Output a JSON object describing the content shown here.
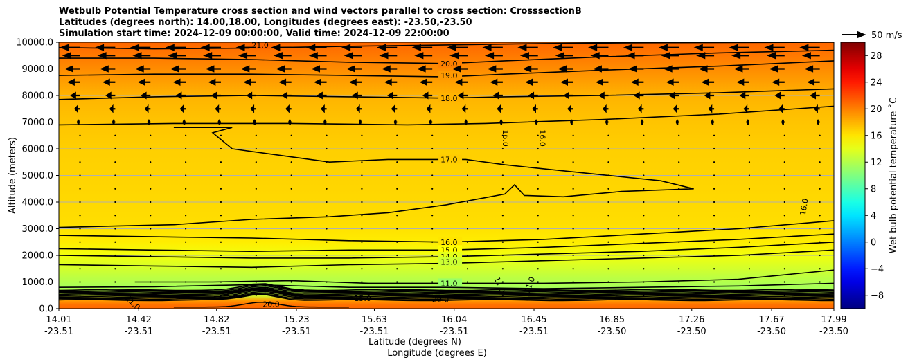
{
  "title_lines": [
    "Wetbulb Potential Temperature cross section and wind vectors parallel to cross section: CrosssectionB",
    "Latitudes (degrees north): 14.00,18.00, Longitudes (degrees east): -23.50,-23.50",
    "Simulation start time: 2024-12-09 00:00:00, Valid time: 2024-12-09 22:00:00"
  ],
  "chart_data": {
    "type": "heatmap",
    "ylabel": "Altitude (meters)",
    "xlabel_lines": [
      "Latitude (degrees N)",
      "Longitude (degrees E)"
    ],
    "ylim": [
      0,
      10000
    ],
    "xlim": [
      14.01,
      17.99
    ],
    "y_ticks": [
      "0.0",
      "1000.0",
      "2000.0",
      "3000.0",
      "4000.0",
      "5000.0",
      "6000.0",
      "7000.0",
      "8000.0",
      "9000.0",
      "10000.0"
    ],
    "y_tick_values": [
      0,
      1000,
      2000,
      3000,
      4000,
      5000,
      6000,
      7000,
      8000,
      9000,
      10000
    ],
    "x_ticks": [
      {
        "lat": 14.01,
        "lat_label": "14.01",
        "lon_label": "-23.51"
      },
      {
        "lat": 14.42,
        "lat_label": "14.42",
        "lon_label": "-23.51"
      },
      {
        "lat": 14.82,
        "lat_label": "14.82",
        "lon_label": "-23.51"
      },
      {
        "lat": 15.23,
        "lat_label": "15.23",
        "lon_label": "-23.51"
      },
      {
        "lat": 15.63,
        "lat_label": "15.63",
        "lon_label": "-23.51"
      },
      {
        "lat": 16.04,
        "lat_label": "16.04",
        "lon_label": "-23.51"
      },
      {
        "lat": 16.45,
        "lat_label": "16.45",
        "lon_label": "-23.51"
      },
      {
        "lat": 16.85,
        "lat_label": "16.85",
        "lon_label": "-23.50"
      },
      {
        "lat": 17.26,
        "lat_label": "17.26",
        "lon_label": "-23.50"
      },
      {
        "lat": 17.67,
        "lat_label": "17.67",
        "lon_label": "-23.50"
      },
      {
        "lat": 17.99,
        "lat_label": "17.99",
        "lon_label": "-23.50"
      }
    ],
    "grid": "horizontal",
    "colorbar": {
      "label": "Wet bulb potential temperature $^\\circ$C",
      "label_display": "Wet bulb potential temperature ˚C",
      "range": [
        -10,
        30
      ],
      "ticks": [
        "−8",
        "−4",
        "0",
        "4",
        "8",
        "12",
        "16",
        "20",
        "24",
        "28"
      ],
      "tick_values": [
        -8,
        -4,
        0,
        4,
        8,
        12,
        16,
        20,
        24,
        28
      ],
      "colormap": "jet"
    },
    "wind_key": {
      "label": "50 m/s",
      "speed": 50
    },
    "field_profile": [
      {
        "alt": 0,
        "value": 21
      },
      {
        "alt": 150,
        "value": 20.5
      },
      {
        "alt": 300,
        "value": 19
      },
      {
        "alt": 500,
        "value": 13
      },
      {
        "alt": 800,
        "value": 11.5
      },
      {
        "alt": 1200,
        "value": 12.5
      },
      {
        "alt": 1600,
        "value": 13.5
      },
      {
        "alt": 2000,
        "value": 14.5
      },
      {
        "alt": 2500,
        "value": 15.7
      },
      {
        "alt": 3200,
        "value": 16.3
      },
      {
        "alt": 4500,
        "value": 16.6
      },
      {
        "alt": 6000,
        "value": 16.9
      },
      {
        "alt": 7000,
        "value": 17.3
      },
      {
        "alt": 8000,
        "value": 18
      },
      {
        "alt": 9000,
        "value": 19.5
      },
      {
        "alt": 10000,
        "value": 21
      }
    ],
    "contours": [
      {
        "label": "21.0",
        "label_lat": 15.0,
        "label_alt": 9900,
        "points": [
          [
            14.01,
            9800
          ],
          [
            14.5,
            9750
          ],
          [
            15.0,
            9780
          ],
          [
            15.5,
            9850
          ],
          [
            16.0,
            9900
          ],
          [
            16.5,
            9950
          ],
          [
            17.0,
            9980
          ],
          [
            17.99,
            10000
          ]
        ]
      },
      {
        "label": "20.0",
        "label_lat": 15.97,
        "label_alt": 9200,
        "points": [
          [
            14.01,
            9400
          ],
          [
            14.5,
            9400
          ],
          [
            15.0,
            9350
          ],
          [
            15.5,
            9250
          ],
          [
            16.0,
            9200
          ],
          [
            16.3,
            9300
          ],
          [
            16.8,
            9450
          ],
          [
            17.4,
            9600
          ],
          [
            17.99,
            9700
          ]
        ]
      },
      {
        "label": "19.0",
        "label_lat": 15.97,
        "label_alt": 8750,
        "points": [
          [
            14.01,
            8750
          ],
          [
            14.5,
            8800
          ],
          [
            15.0,
            8800
          ],
          [
            15.5,
            8750
          ],
          [
            16.0,
            8700
          ],
          [
            16.3,
            8800
          ],
          [
            16.8,
            8950
          ],
          [
            17.4,
            9100
          ],
          [
            17.99,
            9300
          ]
        ]
      },
      {
        "label": "18.0",
        "label_lat": 15.97,
        "label_alt": 7900,
        "points": [
          [
            14.01,
            7850
          ],
          [
            14.5,
            7950
          ],
          [
            15.0,
            8000
          ],
          [
            15.5,
            7950
          ],
          [
            16.0,
            7900
          ],
          [
            16.3,
            7950
          ],
          [
            16.8,
            8000
          ],
          [
            17.4,
            8100
          ],
          [
            17.99,
            8250
          ]
        ]
      },
      {
        "label": "",
        "label_lat": 0,
        "label_alt": 0,
        "points": [
          [
            14.01,
            6900
          ],
          [
            14.6,
            6950
          ],
          [
            15.2,
            6950
          ],
          [
            15.8,
            6900
          ],
          [
            16.2,
            6950
          ],
          [
            16.8,
            7100
          ],
          [
            17.4,
            7300
          ],
          [
            17.99,
            7600
          ]
        ]
      },
      {
        "label": "17.0",
        "label_lat": 15.97,
        "label_alt": 5600,
        "points": [
          [
            14.6,
            6800
          ],
          [
            14.9,
            6800
          ],
          [
            14.8,
            6600
          ],
          [
            14.9,
            6000
          ],
          [
            15.2,
            5700
          ],
          [
            15.4,
            5500
          ],
          [
            15.7,
            5600
          ],
          [
            16.1,
            5600
          ],
          [
            16.3,
            5400
          ],
          [
            16.7,
            5100
          ],
          [
            17.1,
            4800
          ],
          [
            17.27,
            4500
          ],
          [
            16.9,
            4400
          ],
          [
            16.6,
            4200
          ],
          [
            16.4,
            4250
          ],
          [
            16.35,
            4650
          ],
          [
            16.3,
            4300
          ],
          [
            16.0,
            3900
          ],
          [
            15.7,
            3600
          ],
          [
            15.4,
            3450
          ],
          [
            15.0,
            3350
          ],
          [
            14.6,
            3150
          ],
          [
            14.3,
            3100
          ],
          [
            14.01,
            3050
          ]
        ]
      },
      {
        "label": "16.0",
        "label_lat": 15.97,
        "label_alt": 2500,
        "points": [
          [
            14.01,
            2750
          ],
          [
            14.5,
            2700
          ],
          [
            15.0,
            2650
          ],
          [
            15.5,
            2550
          ],
          [
            16.0,
            2500
          ],
          [
            16.5,
            2600
          ],
          [
            17.0,
            2800
          ],
          [
            17.5,
            3000
          ],
          [
            17.99,
            3300
          ]
        ]
      },
      {
        "label": "15.0",
        "label_lat": 15.97,
        "label_alt": 2200,
        "points": [
          [
            14.01,
            2250
          ],
          [
            14.5,
            2200
          ],
          [
            15.0,
            2150
          ],
          [
            15.5,
            2200
          ],
          [
            16.0,
            2200
          ],
          [
            16.5,
            2300
          ],
          [
            17.0,
            2450
          ],
          [
            17.5,
            2600
          ],
          [
            17.99,
            2800
          ]
        ]
      },
      {
        "label": "14.0",
        "label_lat": 15.97,
        "label_alt": 1950,
        "points": [
          [
            14.01,
            2000
          ],
          [
            14.5,
            1950
          ],
          [
            15.0,
            1900
          ],
          [
            15.5,
            1900
          ],
          [
            16.0,
            1950
          ],
          [
            16.5,
            2050
          ],
          [
            17.0,
            2150
          ],
          [
            17.5,
            2300
          ],
          [
            17.99,
            2500
          ]
        ]
      },
      {
        "label": "13.0",
        "label_lat": 15.97,
        "label_alt": 1750,
        "points": [
          [
            14.01,
            1650
          ],
          [
            14.5,
            1600
          ],
          [
            15.0,
            1550
          ],
          [
            15.5,
            1650
          ],
          [
            16.0,
            1700
          ],
          [
            16.5,
            1800
          ],
          [
            17.0,
            1900
          ],
          [
            17.5,
            2000
          ],
          [
            17.99,
            2200
          ]
        ]
      },
      {
        "label": "11.0",
        "label_lat": 15.97,
        "label_alt": 950,
        "points": [
          [
            14.4,
            1000
          ],
          [
            14.8,
            1000
          ],
          [
            15.2,
            1050
          ],
          [
            15.6,
            950
          ],
          [
            16.0,
            950
          ],
          [
            16.5,
            950
          ],
          [
            17.0,
            1000
          ],
          [
            17.5,
            1100
          ],
          [
            17.99,
            1450
          ]
        ]
      },
      {
        "label": "",
        "label_lat": 0,
        "label_alt": 0,
        "points": [
          [
            14.01,
            800
          ],
          [
            14.5,
            820
          ],
          [
            15.0,
            900
          ],
          [
            15.5,
            800
          ],
          [
            16.0,
            800
          ],
          [
            16.5,
            750
          ],
          [
            17.0,
            800
          ],
          [
            17.5,
            850
          ],
          [
            17.99,
            950
          ]
        ]
      }
    ],
    "inline_labels": [
      {
        "text": "16.0",
        "lat": 16.29,
        "alt": 6400,
        "rotate": 90
      },
      {
        "text": "16.0",
        "lat": 16.48,
        "alt": 6400,
        "rotate": 90
      },
      {
        "text": "16.0",
        "lat": 17.85,
        "alt": 3800,
        "rotate": -80
      },
      {
        "text": "11.0",
        "lat": 16.26,
        "alt": 850,
        "rotate": 70
      },
      {
        "text": "11.0",
        "lat": 16.44,
        "alt": 850,
        "rotate": -70
      },
      {
        "text": "20.0",
        "lat": 15.97,
        "alt": 250,
        "rotate": 0
      },
      {
        "text": "21.0",
        "lat": 14.38,
        "alt": 150,
        "rotate": 45
      },
      {
        "text": "20.0",
        "lat": 15.1,
        "alt": 70,
        "rotate": 0
      },
      {
        "text": "15.0",
        "lat": 15.57,
        "alt": 280,
        "rotate": 0
      }
    ],
    "wind_rows": [
      {
        "alt": 9800,
        "u": -15
      },
      {
        "alt": 9500,
        "u": -13
      },
      {
        "alt": 9000,
        "u": -11
      },
      {
        "alt": 8500,
        "u": -9
      },
      {
        "alt": 8000,
        "u": -7
      },
      {
        "alt": 7500,
        "u": -4
      },
      {
        "alt": 7000,
        "u": -2
      },
      {
        "alt": 6500,
        "u": -1.2
      },
      {
        "alt": 6000,
        "u": -1
      },
      {
        "alt": 5500,
        "u": -0.8
      },
      {
        "alt": 5000,
        "u": -0.6
      },
      {
        "alt": 4500,
        "u": -0.5
      },
      {
        "alt": 4000,
        "u": -0.4
      },
      {
        "alt": 3500,
        "u": -0.3
      },
      {
        "alt": 3000,
        "u": -0.2
      },
      {
        "alt": 2500,
        "u": -0.15
      },
      {
        "alt": 2000,
        "u": -0.1
      },
      {
        "alt": 1500,
        "u": -0.1
      },
      {
        "alt": 1000,
        "u": -0.1
      },
      {
        "alt": 500,
        "u": -0.1
      }
    ],
    "wind_columns": 22
  }
}
